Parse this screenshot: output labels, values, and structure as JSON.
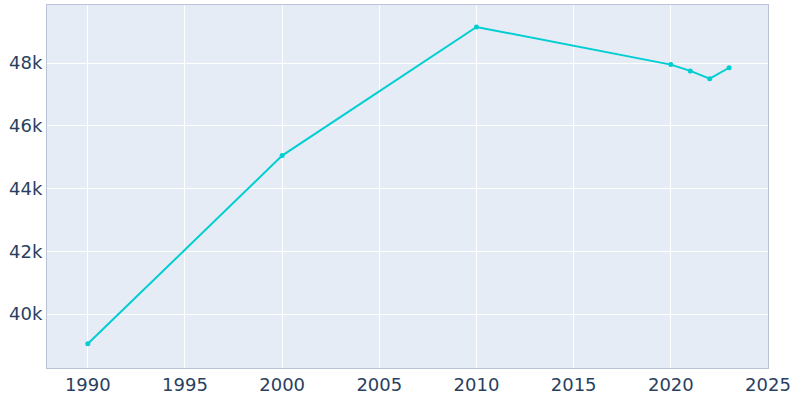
{
  "chart_data": {
    "type": "line",
    "x": [
      1990,
      2000,
      2010,
      2020,
      2021,
      2022,
      2023
    ],
    "values": [
      39050,
      45050,
      49150,
      47950,
      47750,
      47500,
      47850
    ],
    "color": "#00ced1",
    "marker": "circle",
    "xlim": [
      1987.9,
      2025
    ],
    "ylim": [
      38280,
      49850
    ],
    "xticks": [
      1990,
      1995,
      2000,
      2005,
      2010,
      2015,
      2020,
      2025
    ],
    "yticks": [
      {
        "value": 40000,
        "label": "40k"
      },
      {
        "value": 42000,
        "label": "42k"
      },
      {
        "value": 44000,
        "label": "44k"
      },
      {
        "value": 46000,
        "label": "46k"
      },
      {
        "value": 48000,
        "label": "48k"
      }
    ],
    "grid": true
  }
}
